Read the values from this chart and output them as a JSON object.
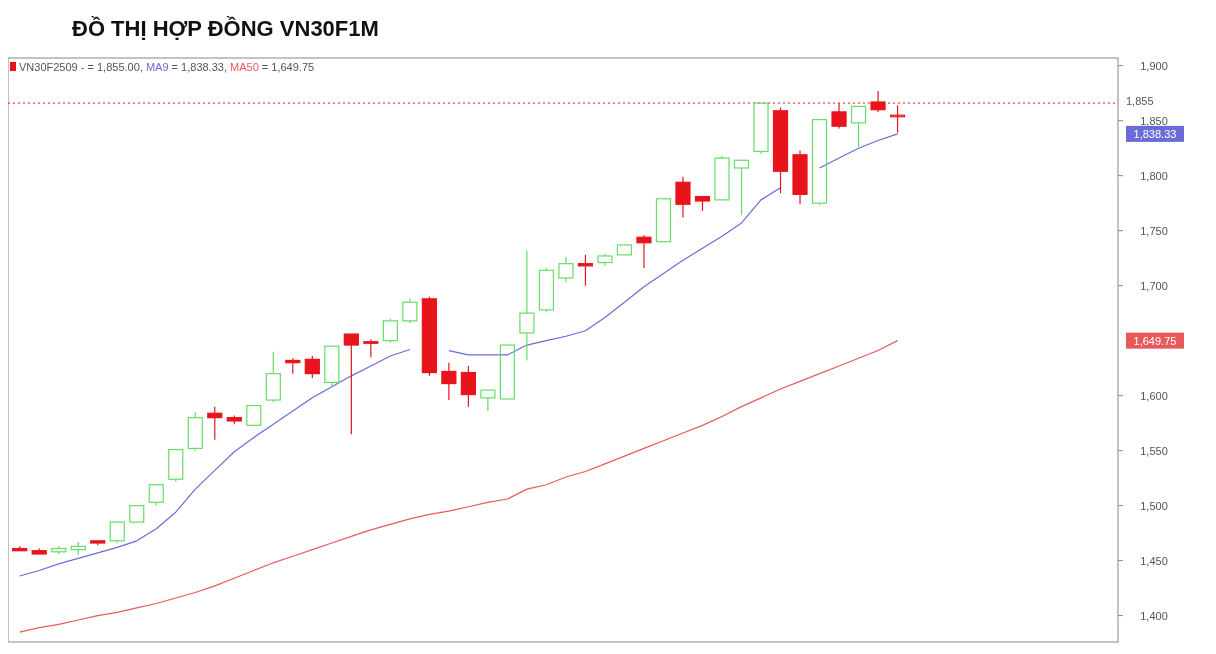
{
  "chart_data": {
    "type": "candlestick",
    "title": "ĐỒ THỊ HỢP ĐỒNG VN30F1M",
    "categories": [
      null,
      null,
      null,
      null,
      null,
      null,
      null,
      null,
      null,
      null,
      null,
      null,
      null,
      null,
      null,
      null,
      null,
      null,
      null,
      null,
      null,
      null,
      null,
      null,
      null,
      null,
      null,
      null,
      null,
      null,
      null,
      null,
      null,
      null,
      null,
      null,
      null,
      null,
      null,
      null,
      null,
      null,
      null,
      null,
      null,
      null
    ],
    "ylim": [
      1376,
      1907
    ],
    "yticks": [
      {
        "value": 1400,
        "label": "1,400"
      },
      {
        "value": 1450,
        "label": "1,450"
      },
      {
        "value": 1500,
        "label": "1,500"
      },
      {
        "value": 1550,
        "label": "1,550"
      },
      {
        "value": 1600,
        "label": "1,600"
      },
      {
        "value": 1700,
        "label": "1,700"
      },
      {
        "value": 1750,
        "label": "1,750"
      },
      {
        "value": 1800,
        "label": "1,800"
      },
      {
        "value": 1850,
        "label": "1,850"
      },
      {
        "value": 1900,
        "label": "1,900"
      }
    ],
    "grid": false,
    "legend": "top left",
    "series": [
      {
        "name": "VN30F2509",
        "ohlc": [
          [
            1461,
            1463,
            1458,
            1459
          ],
          [
            1459,
            1461,
            1455,
            1456
          ],
          [
            1458,
            1463,
            1456,
            1461
          ],
          [
            1460,
            1467,
            1455,
            1463
          ],
          [
            1468,
            1469,
            1464,
            1466
          ],
          [
            1468,
            1486,
            1466,
            1485
          ],
          [
            1485,
            1501,
            1484,
            1500
          ],
          [
            1503,
            1519,
            1500,
            1519
          ],
          [
            1524,
            1551,
            1522,
            1551
          ],
          [
            1552,
            1585,
            1550,
            1580
          ],
          [
            1584,
            1590,
            1560,
            1580
          ],
          [
            1580,
            1582,
            1574,
            1577
          ],
          [
            1573,
            1591,
            1572,
            1591
          ],
          [
            1596,
            1640,
            1594,
            1620
          ],
          [
            1632,
            1634,
            1620,
            1630
          ],
          [
            1633,
            1636,
            1616,
            1620
          ],
          [
            1612,
            1646,
            1608,
            1645
          ],
          [
            1656,
            1657,
            1565,
            1646
          ],
          [
            1649,
            1651,
            1635,
            1648
          ],
          [
            1650,
            1670,
            1648,
            1668
          ],
          [
            1668,
            1688,
            1666,
            1685
          ],
          [
            1688,
            1690,
            1618,
            1621
          ],
          [
            1622,
            1630,
            1596,
            1611
          ],
          [
            1621,
            1627,
            1590,
            1601
          ],
          [
            1598,
            1605,
            1586,
            1605
          ],
          [
            1597,
            1647,
            1596,
            1646
          ],
          [
            1657,
            1732,
            1632,
            1675
          ],
          [
            1678,
            1716,
            1676,
            1714
          ],
          [
            1707,
            1726,
            1703,
            1720
          ],
          [
            1720,
            1728,
            1700,
            1718
          ],
          [
            1721,
            1729,
            1718,
            1727
          ],
          [
            1728,
            1738,
            1727,
            1737
          ],
          [
            1744,
            1746,
            1716,
            1739
          ],
          [
            1740,
            1779,
            1739,
            1779
          ],
          [
            1794,
            1799,
            1762,
            1774
          ],
          [
            1781,
            1782,
            1768,
            1777
          ],
          [
            1778,
            1818,
            1777,
            1816
          ],
          [
            1807,
            1815,
            1764,
            1814
          ],
          [
            1822,
            1866,
            1820,
            1866
          ],
          [
            1859,
            1862,
            1784,
            1804
          ],
          [
            1819,
            1823,
            1774,
            1783
          ],
          [
            1775,
            1851,
            1773,
            1851
          ],
          [
            1858,
            1866,
            1843,
            1845
          ],
          [
            1848,
            1863,
            1826,
            1863
          ],
          [
            1867,
            1877,
            1858,
            1860
          ],
          [
            1855,
            1864,
            1839,
            1855
          ]
        ],
        "colors": [
          "#e8141c",
          "#e8141c",
          "#66dd66",
          "#66dd66",
          "#e8141c",
          "#66dd66",
          "#66dd66",
          "#66dd66",
          "#66dd66",
          "#66dd66",
          "#e8141c",
          "#e8141c",
          "#66dd66",
          "#66dd66",
          "#e8141c",
          "#e8141c",
          "#66dd66",
          "#e8141c",
          "#e8141c",
          "#66dd66",
          "#66dd66",
          "#e8141c",
          "#e8141c",
          "#e8141c",
          "#66dd66",
          "#66dd66",
          "#66dd66",
          "#66dd66",
          "#66dd66",
          "#e8141c",
          "#66dd66",
          "#66dd66",
          "#e8141c",
          "#66dd66",
          "#e8141c",
          "#e8141c",
          "#66dd66",
          "#66dd66",
          "#66dd66",
          "#e8141c",
          "#e8141c",
          "#66dd66",
          "#e8141c",
          "#66dd66",
          "#e8141c",
          "#e8141c"
        ]
      },
      {
        "type": "line",
        "name": "MA9",
        "color": "#6b6bd8",
        "values": [
          1436,
          1441,
          1447,
          1452,
          1457,
          1462,
          1468,
          1479,
          1494,
          1515,
          1532,
          1549,
          1562,
          1574,
          1586,
          1598,
          1608,
          1618,
          1627,
          1636,
          1642,
          null,
          1641,
          1637,
          1637,
          1637,
          1646,
          1650,
          1654,
          1659,
          1671,
          1685,
          1699,
          1711,
          1723,
          1734,
          1745,
          1757,
          1778,
          1789,
          null,
          1807,
          1816,
          1825,
          1832,
          1838
        ]
      },
      {
        "type": "line",
        "name": "MA50",
        "color": "#e85a5a",
        "values": [
          1385,
          1389,
          1392,
          1396,
          1400,
          1403,
          1407,
          1411,
          1416,
          1421,
          1427,
          1434,
          1441,
          1448,
          1454,
          1460,
          1466,
          1472,
          1478,
          1483,
          1488,
          1492,
          1495,
          1499,
          1503,
          1506,
          1515,
          1519,
          1526,
          1531,
          1538,
          1545,
          1552,
          1559,
          1566,
          1573,
          1581,
          1590,
          1598,
          1606,
          1613,
          1620,
          1627,
          1634,
          1641,
          1650
        ]
      }
    ],
    "ref_lines": [
      {
        "axis": "y",
        "value": 1866,
        "color": "#e8141c",
        "line_style": "dotted"
      }
    ],
    "annotations": [
      "- = 1,855.00,",
      "= 1,838.33,",
      "= 1,649.75",
      "1,855",
      "1,838.33",
      "1,649.75"
    ]
  }
}
